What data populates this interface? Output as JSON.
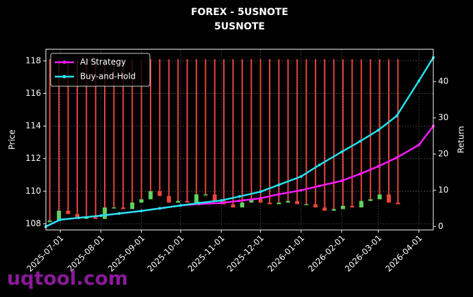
{
  "chart_data": {
    "type": "candlestick-returns",
    "title": "FOREX - 5USNOTE",
    "subtitle": "5USNOTE",
    "y_label": "Price",
    "y2_label": "Return",
    "watermark": "uqtool.com",
    "xlim": [
      "2025-06-20",
      "2026-04-12"
    ],
    "xticks": [
      "2025-07-01",
      "2025-08-01",
      "2025-09-01",
      "2025-10-01",
      "2025-11-01",
      "2025-12-01",
      "2026-01-01",
      "2026-02-01",
      "2026-03-01",
      "2026-04-01"
    ],
    "ylim": [
      107.62,
      118.71
    ],
    "yticks": [
      108,
      110,
      112,
      114,
      116,
      118
    ],
    "y2lim": [
      -0.94,
      48.9
    ],
    "y2ticks": [
      0,
      10,
      20,
      30,
      40
    ],
    "grid": true,
    "legend": "upper left",
    "candles": {
      "up_color": "#5fd35f",
      "down_color": "#e8453c",
      "x": [
        "2025-06-23",
        "2025-06-30",
        "2025-07-07",
        "2025-07-14",
        "2025-07-21",
        "2025-07-28",
        "2025-08-04",
        "2025-08-11",
        "2025-08-18",
        "2025-08-25",
        "2025-09-01",
        "2025-09-08",
        "2025-09-15",
        "2025-09-22",
        "2025-09-29",
        "2025-10-06",
        "2025-10-13",
        "2025-10-20",
        "2025-10-27",
        "2025-11-03",
        "2025-11-10",
        "2025-11-17",
        "2025-11-24",
        "2025-12-01",
        "2025-12-08",
        "2025-12-15",
        "2025-12-22",
        "2025-12-29",
        "2026-01-05",
        "2026-01-12",
        "2026-01-19",
        "2026-01-26",
        "2026-02-02",
        "2026-02-09",
        "2026-02-16",
        "2026-02-23",
        "2026-03-02",
        "2026-03-09",
        "2026-03-16"
      ],
      "open": [
        108.1,
        108.2,
        108.8,
        108.6,
        108.3,
        108.4,
        108.3,
        109.0,
        109.0,
        108.9,
        109.3,
        109.5,
        110.0,
        109.7,
        109.3,
        109.4,
        109.3,
        109.8,
        109.8,
        109.4,
        109.2,
        109.0,
        109.3,
        109.5,
        109.3,
        109.2,
        109.3,
        109.4,
        109.2,
        109.2,
        109.0,
        108.8,
        108.9,
        109.1,
        109.0,
        109.4,
        109.5,
        109.8,
        109.3
      ],
      "close": [
        108.2,
        108.8,
        108.6,
        108.3,
        108.4,
        108.3,
        109.0,
        109.0,
        108.9,
        109.3,
        109.5,
        110.0,
        109.7,
        109.3,
        109.4,
        109.3,
        109.8,
        109.8,
        109.4,
        109.2,
        109.0,
        109.3,
        109.5,
        109.3,
        109.2,
        109.3,
        109.4,
        109.2,
        109.2,
        109.0,
        108.8,
        108.9,
        109.1,
        109.0,
        109.4,
        109.5,
        109.8,
        109.3,
        109.2
      ],
      "high": [
        118.1,
        118.1,
        118.1,
        118.1,
        118.1,
        118.1,
        118.1,
        118.1,
        118.1,
        118.1,
        118.1,
        118.1,
        118.1,
        118.1,
        118.1,
        118.1,
        118.1,
        118.1,
        118.1,
        118.1,
        118.1,
        118.1,
        118.1,
        118.1,
        118.1,
        118.1,
        118.1,
        118.1,
        118.1,
        118.1,
        118.1,
        118.1,
        118.1,
        118.1,
        118.1,
        118.1,
        118.1,
        118.1,
        118.1
      ]
    },
    "x": [
      "2025-06-20",
      "2025-07-01",
      "2025-07-15",
      "2025-08-01",
      "2025-08-15",
      "2025-09-01",
      "2025-09-15",
      "2025-10-01",
      "2025-10-15",
      "2025-11-01",
      "2025-11-15",
      "2025-12-01",
      "2025-12-15",
      "2026-01-01",
      "2026-01-15",
      "2026-02-01",
      "2026-02-15",
      "2026-03-01",
      "2026-03-15",
      "2026-04-01",
      "2026-04-12"
    ],
    "series": [
      {
        "name": "AI Strategy",
        "color": "#ff1aff",
        "axis": "y2",
        "values": [
          0,
          1.9,
          2.4,
          3.0,
          3.6,
          4.3,
          5.0,
          5.8,
          6.2,
          6.5,
          7.1,
          7.8,
          8.9,
          10.0,
          11.2,
          12.6,
          14.5,
          16.6,
          19.0,
          22.5,
          27.7
        ]
      },
      {
        "name": "Buy-and-Hold",
        "color": "#22e5f0",
        "axis": "y2",
        "values": [
          0,
          1.9,
          2.4,
          3.0,
          3.6,
          4.3,
          5.0,
          5.8,
          6.5,
          7.2,
          8.3,
          9.6,
          11.5,
          13.8,
          17.0,
          20.6,
          23.5,
          26.6,
          30.5,
          40.2,
          46.6
        ]
      }
    ]
  }
}
